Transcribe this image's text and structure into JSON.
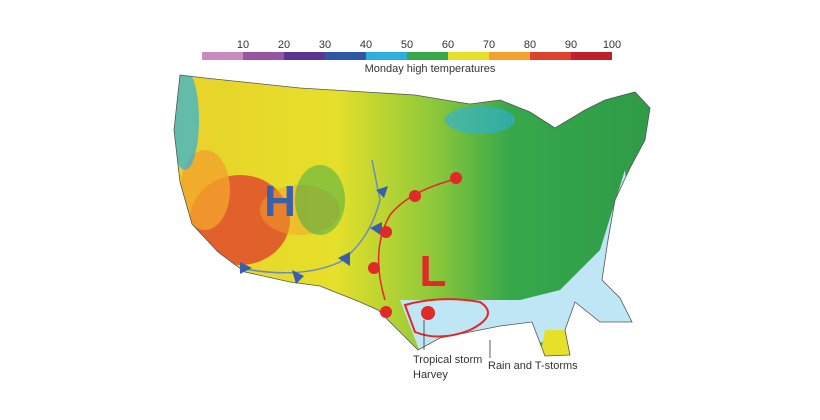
{
  "legend": {
    "title": "Monday high temperatures",
    "ticks": [
      10,
      20,
      30,
      40,
      50,
      60,
      70,
      80,
      90,
      100
    ],
    "colors": [
      "#c98ac0",
      "#9656a4",
      "#5a3690",
      "#2e58a6",
      "#2bb0e0",
      "#36a84a",
      "#e6e02a",
      "#f2a22c",
      "#df422c",
      "#c01f2c"
    ]
  },
  "map": {
    "high": "H",
    "low": "L",
    "annotations": [
      "Tropical storm",
      "Harvey",
      "Rain and T-storms"
    ]
  }
}
